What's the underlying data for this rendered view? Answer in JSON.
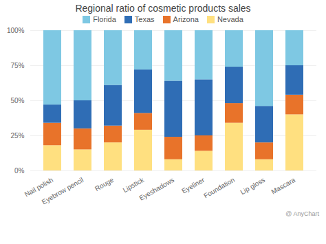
{
  "chart_data": {
    "type": "bar",
    "stacked": true,
    "title": "Regional ratio of cosmetic products sales",
    "categories": [
      "Nail polish",
      "Eyebrow pencil",
      "Rouge",
      "Lipstick",
      "Eyeshadows",
      "Eyeliner",
      "Foundation",
      "Lip gloss",
      "Mascara"
    ],
    "series": [
      {
        "name": "Nevada",
        "color": "#FFE080",
        "values": [
          18,
          15,
          20,
          29,
          8,
          14,
          34,
          8,
          40
        ]
      },
      {
        "name": "Arizona",
        "color": "#E8732A",
        "values": [
          16,
          15,
          12,
          12,
          16,
          11,
          14,
          12,
          14
        ]
      },
      {
        "name": "Texas",
        "color": "#2F6DB5",
        "values": [
          13,
          20,
          29,
          31,
          40,
          40,
          26,
          26,
          21
        ]
      },
      {
        "name": "Florida",
        "color": "#7EC8E3",
        "values": [
          53,
          50,
          39,
          28,
          36,
          35,
          26,
          54,
          25
        ]
      }
    ],
    "ylim": [
      0,
      100
    ],
    "yticks": [
      {
        "value": 0,
        "label": "0%"
      },
      {
        "value": 25,
        "label": "25%"
      },
      {
        "value": 50,
        "label": "50%"
      },
      {
        "value": 75,
        "label": "75%"
      },
      {
        "value": 100,
        "label": "100%"
      }
    ],
    "grid": true,
    "legend": "top",
    "annotations": [
      "@ AnyChart"
    ]
  }
}
